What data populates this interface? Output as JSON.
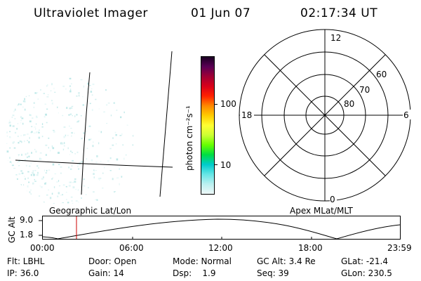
{
  "header": {
    "instrument": "Ultraviolet Imager",
    "date": "01 Jun 07",
    "time": "02:17:34 UT"
  },
  "colorbar": {
    "unit_label": "photon cm⁻²s⁻¹",
    "ticks": [
      "100",
      "10"
    ],
    "colors": [
      "#1a0022",
      "#5a0055",
      "#a00035",
      "#d8001a",
      "#ff2200",
      "#ff8800",
      "#ffcc00",
      "#ffff33",
      "#ccff33",
      "#66ff00",
      "#00dd44",
      "#00cccc",
      "#66e6e6",
      "#bbf0f0",
      "#eef8f8"
    ]
  },
  "polar_plot": {
    "mlt_labels": {
      "top": "12",
      "bottom": "0",
      "left": "18",
      "right": "6"
    },
    "lat_labels": [
      "60",
      "70",
      "80"
    ]
  },
  "map_labels": {
    "geographic": "Geographic Lat/Lon",
    "apex": "Apex MLat/MLT"
  },
  "altitude_plot": {
    "ylabel": "GC Alt",
    "y_ticks": [
      "9.0",
      "1.8"
    ],
    "x_ticks": [
      "00:00",
      "06:00",
      "12:00",
      "18:00",
      "23:59"
    ]
  },
  "info_table": [
    [
      {
        "text": "Flt: LBHL"
      },
      {
        "text": "Door: Open"
      },
      {
        "text": "Mode: Normal"
      },
      {
        "text": "GC Alt: 3.4 Re"
      },
      {
        "text": "GLat: -21.4"
      }
    ],
    [
      {
        "text": "IP: 36.0"
      },
      {
        "text": "Gain: 14"
      },
      {
        "text": "Dsp:    1.9"
      },
      {
        "text": "Seq: 39"
      },
      {
        "text": "GLon: 230.5"
      }
    ]
  ]
}
